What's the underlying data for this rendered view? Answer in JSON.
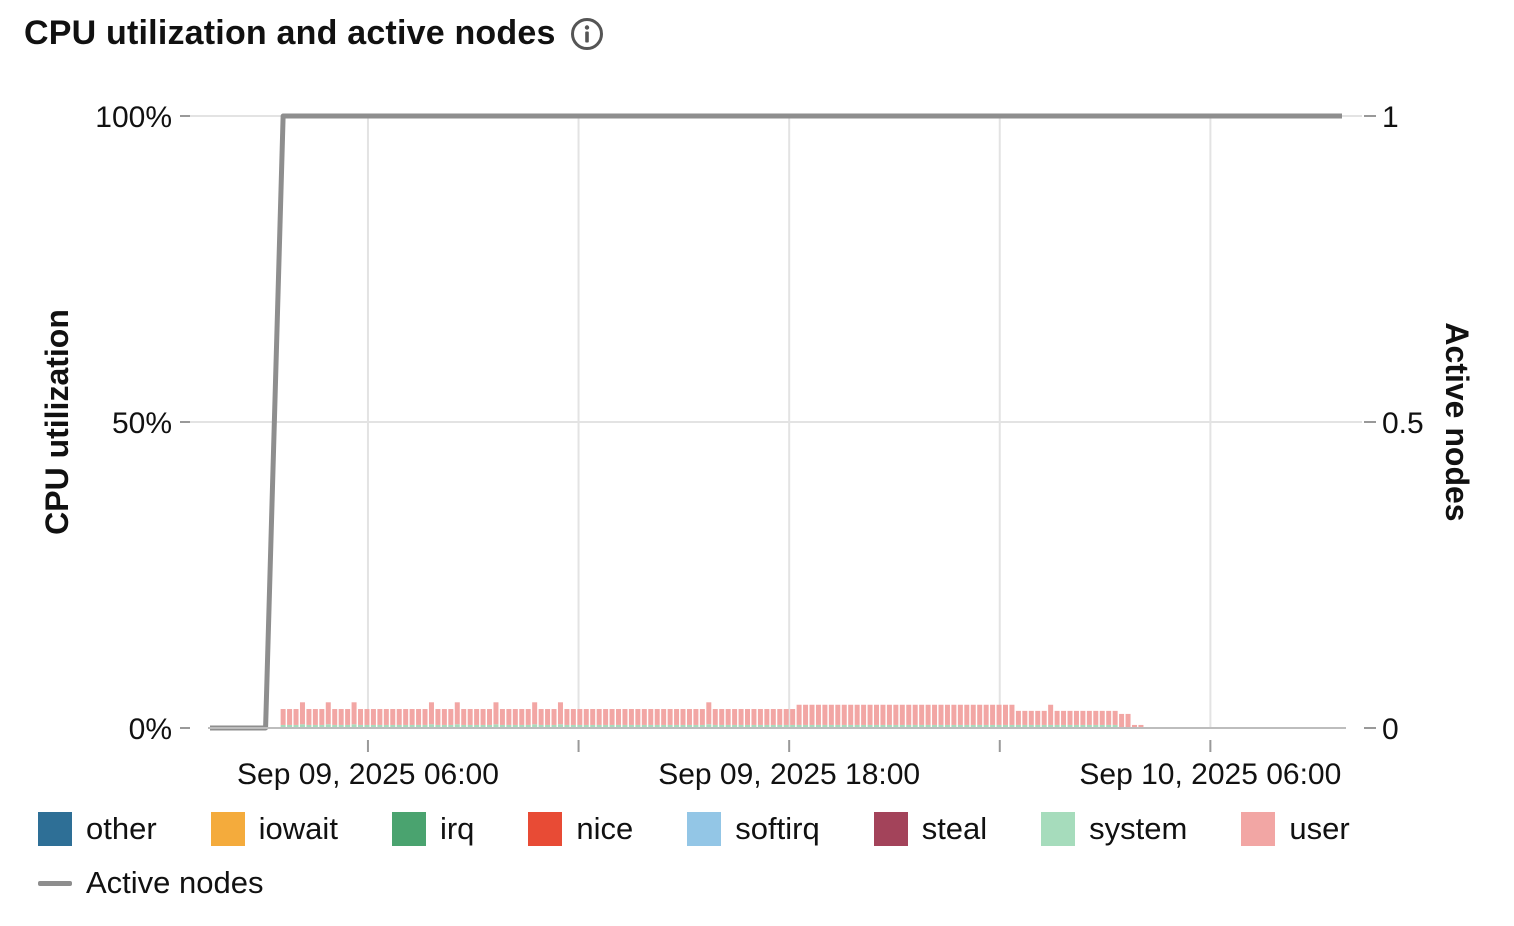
{
  "title": "CPU utilization and active nodes",
  "chart_data": {
    "type": "bar",
    "stacked": true,
    "title": "CPU utilization and active nodes",
    "ylabel": "CPU utilization",
    "y2label": "Active nodes",
    "ylim": [
      0,
      100
    ],
    "y2lim": [
      0,
      1
    ],
    "y_ticks": [
      "0%",
      "50%",
      "100%"
    ],
    "y2_ticks": [
      "0",
      "0.5",
      "1"
    ],
    "x_ticks": [
      "Sep 09, 2025 06:00",
      "Sep 09, 2025 18:00",
      "Sep 10, 2025 06:00"
    ],
    "x_start": "Sep 09, 2025 01:30",
    "x_end": "Sep 10, 2025 09:45",
    "grid": true,
    "legend_position": "bottom",
    "series": [
      {
        "name": "other",
        "color": "#2e6f96",
        "values": []
      },
      {
        "name": "iowait",
        "color": "#f4ab3c",
        "values": []
      },
      {
        "name": "irq",
        "color": "#4aa36f",
        "values": []
      },
      {
        "name": "nice",
        "color": "#e84b35",
        "values": []
      },
      {
        "name": "softirq",
        "color": "#93c6e6",
        "values": []
      },
      {
        "name": "steal",
        "color": "#a3435a",
        "values": []
      },
      {
        "name": "system",
        "color": "#a6dcbc",
        "values": [
          0.5,
          0.5,
          0.5,
          0.6,
          0.5,
          0.5,
          0.5,
          0.6,
          0.5,
          0.5,
          0.5,
          0.6,
          0.5,
          0.5,
          0.5,
          0.5,
          0.5,
          0.5,
          0.5,
          0.5,
          0.5,
          0.5,
          0.5,
          0.6,
          0.5,
          0.5,
          0.5,
          0.6,
          0.5,
          0.5,
          0.5,
          0.5,
          0.5,
          0.6,
          0.5,
          0.5,
          0.5,
          0.5,
          0.5,
          0.6,
          0.5,
          0.5,
          0.5,
          0.6,
          0.5,
          0.5,
          0.5,
          0.5,
          0.5,
          0.5,
          0.5,
          0.5,
          0.5,
          0.5,
          0.5,
          0.5,
          0.5,
          0.5,
          0.5,
          0.5,
          0.5,
          0.5,
          0.5,
          0.5,
          0.5,
          0.5,
          0.6,
          0.5,
          0.5,
          0.5,
          0.5,
          0.5,
          0.5,
          0.5,
          0.5,
          0.5,
          0.5,
          0.5,
          0.5,
          0.5,
          0.5,
          0.5,
          0.5,
          0.5,
          0.5,
          0.5,
          0.5,
          0.5,
          0.5,
          0.5,
          0.5,
          0.5,
          0.5,
          0.5,
          0.5,
          0.5,
          0.5,
          0.5,
          0.5,
          0.5,
          0.5,
          0.5,
          0.5,
          0.5,
          0.5,
          0.5,
          0.5,
          0.5,
          0.5,
          0.5,
          0.5,
          0.5,
          0.5,
          0.5,
          0.5,
          0.5,
          0.5,
          0.5,
          0.5,
          0.5,
          0.5,
          0.5,
          0.5,
          0.5,
          0.5,
          0.5,
          0.5,
          0.5,
          0.5,
          0.5
        ]
      },
      {
        "name": "user",
        "color": "#f2a6a4",
        "values": [
          2.6,
          2.6,
          2.6,
          3.6,
          2.6,
          2.6,
          2.6,
          3.6,
          2.6,
          2.6,
          2.6,
          3.6,
          2.6,
          2.6,
          2.6,
          2.6,
          2.6,
          2.6,
          2.6,
          2.6,
          2.6,
          2.6,
          2.6,
          3.6,
          2.6,
          2.6,
          2.6,
          3.6,
          2.6,
          2.6,
          2.6,
          2.6,
          2.6,
          3.6,
          2.6,
          2.6,
          2.6,
          2.6,
          2.6,
          3.6,
          2.6,
          2.6,
          2.6,
          3.6,
          2.6,
          2.6,
          2.6,
          2.6,
          2.6,
          2.6,
          2.6,
          2.6,
          2.6,
          2.6,
          2.6,
          2.6,
          2.6,
          2.6,
          2.6,
          2.6,
          2.6,
          2.6,
          2.6,
          2.6,
          2.6,
          2.6,
          3.6,
          2.6,
          2.6,
          2.6,
          2.6,
          2.6,
          2.6,
          2.6,
          2.6,
          2.6,
          2.6,
          2.6,
          2.6,
          2.6,
          3.3,
          3.3,
          3.3,
          3.3,
          3.3,
          3.3,
          3.3,
          3.3,
          3.3,
          3.3,
          3.3,
          3.3,
          3.3,
          3.3,
          3.3,
          3.3,
          3.3,
          3.3,
          3.3,
          3.3,
          3.3,
          3.3,
          3.3,
          3.3,
          3.3,
          3.3,
          3.3,
          3.3,
          3.3,
          3.3,
          3.3,
          3.3,
          3.3,
          3.3,
          2.3,
          2.3,
          2.3,
          2.3,
          2.3,
          3.3,
          2.3,
          2.3,
          2.3,
          2.3,
          2.3,
          2.3,
          2.3,
          2.3,
          2.3,
          2.3,
          2.3,
          2.3,
          0.5,
          0.5
        ]
      }
    ],
    "line_series": {
      "name": "Active nodes",
      "color": "#8e8e8e",
      "x": [
        "Sep 09, 2025 01:30",
        "Sep 09, 2025 03:05",
        "Sep 09, 2025 03:35",
        "Sep 10, 2025 09:45"
      ],
      "values": [
        0,
        0,
        1,
        1
      ]
    }
  },
  "legend": [
    {
      "name": "other",
      "color": "#2e6f96"
    },
    {
      "name": "iowait",
      "color": "#f4ab3c"
    },
    {
      "name": "irq",
      "color": "#4aa36f"
    },
    {
      "name": "nice",
      "color": "#e84b35"
    },
    {
      "name": "softirq",
      "color": "#93c6e6"
    },
    {
      "name": "steal",
      "color": "#a3435a"
    },
    {
      "name": "system",
      "color": "#a6dcbc"
    },
    {
      "name": "user",
      "color": "#f2a6a4"
    }
  ],
  "legend_line": {
    "name": "Active nodes",
    "color": "#8e8e8e"
  },
  "icons": {
    "info": "info-circle-icon"
  }
}
